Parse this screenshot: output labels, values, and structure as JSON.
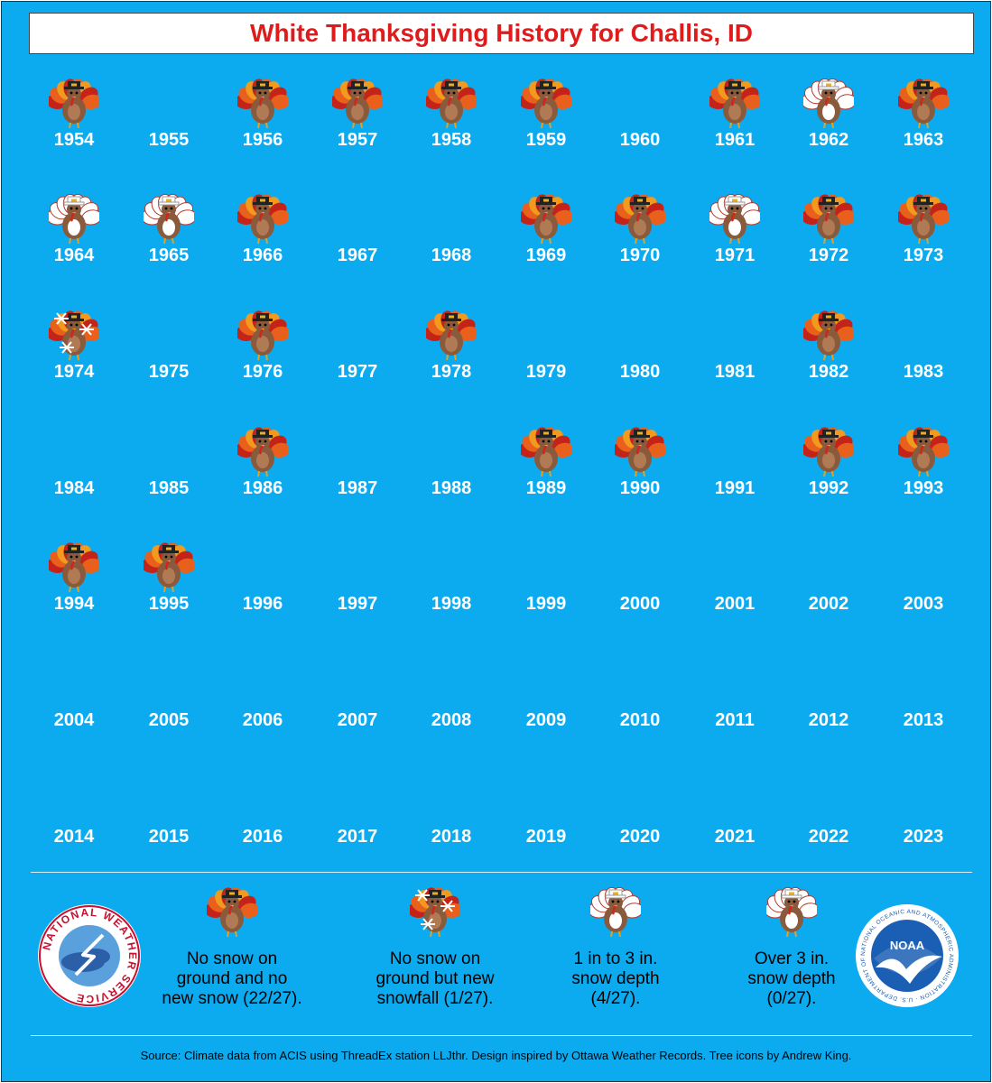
{
  "title": "White Thanksgiving History for Challis, ID",
  "years": [
    {
      "year": "1954",
      "cat": "none"
    },
    {
      "year": "1955",
      "cat": ""
    },
    {
      "year": "1956",
      "cat": "none"
    },
    {
      "year": "1957",
      "cat": "none"
    },
    {
      "year": "1958",
      "cat": "none"
    },
    {
      "year": "1959",
      "cat": "none"
    },
    {
      "year": "1960",
      "cat": ""
    },
    {
      "year": "1961",
      "cat": "none"
    },
    {
      "year": "1962",
      "cat": "depth1to3"
    },
    {
      "year": "1963",
      "cat": "none"
    },
    {
      "year": "1964",
      "cat": "depth1to3"
    },
    {
      "year": "1965",
      "cat": "depth1to3"
    },
    {
      "year": "1966",
      "cat": "none"
    },
    {
      "year": "1967",
      "cat": ""
    },
    {
      "year": "1968",
      "cat": ""
    },
    {
      "year": "1969",
      "cat": "none"
    },
    {
      "year": "1970",
      "cat": "none"
    },
    {
      "year": "1971",
      "cat": "depth1to3"
    },
    {
      "year": "1972",
      "cat": "none"
    },
    {
      "year": "1973",
      "cat": "none"
    },
    {
      "year": "1974",
      "cat": "newsnow"
    },
    {
      "year": "1975",
      "cat": ""
    },
    {
      "year": "1976",
      "cat": "none"
    },
    {
      "year": "1977",
      "cat": ""
    },
    {
      "year": "1978",
      "cat": "none"
    },
    {
      "year": "1979",
      "cat": ""
    },
    {
      "year": "1980",
      "cat": ""
    },
    {
      "year": "1981",
      "cat": ""
    },
    {
      "year": "1982",
      "cat": "none"
    },
    {
      "year": "1983",
      "cat": ""
    },
    {
      "year": "1984",
      "cat": ""
    },
    {
      "year": "1985",
      "cat": ""
    },
    {
      "year": "1986",
      "cat": "none"
    },
    {
      "year": "1987",
      "cat": ""
    },
    {
      "year": "1988",
      "cat": ""
    },
    {
      "year": "1989",
      "cat": "none"
    },
    {
      "year": "1990",
      "cat": "none"
    },
    {
      "year": "1991",
      "cat": ""
    },
    {
      "year": "1992",
      "cat": "none"
    },
    {
      "year": "1993",
      "cat": "none"
    },
    {
      "year": "1994",
      "cat": "none"
    },
    {
      "year": "1995",
      "cat": "none"
    },
    {
      "year": "1996",
      "cat": ""
    },
    {
      "year": "1997",
      "cat": ""
    },
    {
      "year": "1998",
      "cat": ""
    },
    {
      "year": "1999",
      "cat": ""
    },
    {
      "year": "2000",
      "cat": ""
    },
    {
      "year": "2001",
      "cat": ""
    },
    {
      "year": "2002",
      "cat": ""
    },
    {
      "year": "2003",
      "cat": ""
    },
    {
      "year": "2004",
      "cat": ""
    },
    {
      "year": "2005",
      "cat": ""
    },
    {
      "year": "2006",
      "cat": ""
    },
    {
      "year": "2007",
      "cat": ""
    },
    {
      "year": "2008",
      "cat": ""
    },
    {
      "year": "2009",
      "cat": ""
    },
    {
      "year": "2010",
      "cat": ""
    },
    {
      "year": "2011",
      "cat": ""
    },
    {
      "year": "2012",
      "cat": ""
    },
    {
      "year": "2013",
      "cat": ""
    },
    {
      "year": "2014",
      "cat": ""
    },
    {
      "year": "2015",
      "cat": ""
    },
    {
      "year": "2016",
      "cat": ""
    },
    {
      "year": "2017",
      "cat": ""
    },
    {
      "year": "2018",
      "cat": ""
    },
    {
      "year": "2019",
      "cat": ""
    },
    {
      "year": "2020",
      "cat": ""
    },
    {
      "year": "2021",
      "cat": ""
    },
    {
      "year": "2022",
      "cat": ""
    },
    {
      "year": "2023",
      "cat": ""
    }
  ],
  "legend": [
    {
      "cat": "none",
      "lines": [
        "No snow on",
        "ground and no",
        "new snow (22/27)."
      ]
    },
    {
      "cat": "newsnow",
      "lines": [
        "No snow on",
        "ground but new",
        "snowfall (1/27)."
      ]
    },
    {
      "cat": "depth1to3",
      "lines": [
        "1 in to 3 in.",
        "snow depth",
        "(4/27)."
      ]
    },
    {
      "cat": "depth3plus",
      "lines": [
        "Over 3 in.",
        "snow depth",
        "(0/27)."
      ]
    }
  ],
  "logos": {
    "nws": {
      "text": "NATIONAL WEATHER SERVICE"
    },
    "noaa": {
      "text": "NOAA",
      "ring": "NATIONAL OCEANIC AND ATMOSPHERIC ADMINISTRATION · U.S. DEPARTMENT OF COMMERCE"
    }
  },
  "footer": "Source: Climate data from ACIS using ThreadEx station LLJthr. Design inspired by Ottawa Weather Records. Tree icons by Andrew King.",
  "colors": {
    "background": "#0cabf0",
    "title": "#e01b1b",
    "text": "#ffffff"
  }
}
